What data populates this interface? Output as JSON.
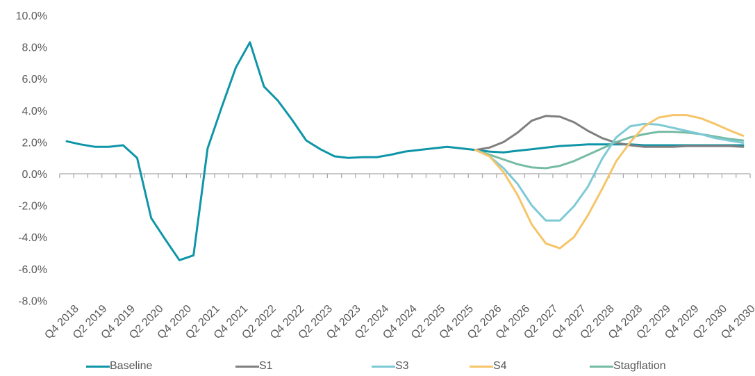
{
  "chart_data": {
    "type": "line",
    "title": "",
    "xlabel": "",
    "ylabel": "",
    "ylim": [
      -8.0,
      10.0
    ],
    "y_ticks": [
      "10.0%",
      "8.0%",
      "6.0%",
      "4.0%",
      "2.0%",
      "0.0%",
      "-2.0%",
      "-4.0%",
      "-6.0%",
      "-8.0%"
    ],
    "y_tick_values": [
      10,
      8,
      6,
      4,
      2,
      0,
      -2,
      -4,
      -6,
      -8
    ],
    "grid": false,
    "legend_position": "bottom",
    "x": [
      "Q4 2018",
      "Q1 2019",
      "Q2 2019",
      "Q3 2019",
      "Q4 2019",
      "Q1 2020",
      "Q2 2020",
      "Q3 2020",
      "Q4 2020",
      "Q1 2021",
      "Q2 2021",
      "Q3 2021",
      "Q4 2021",
      "Q1 2022",
      "Q2 2022",
      "Q3 2022",
      "Q4 2022",
      "Q1 2023",
      "Q2 2023",
      "Q3 2023",
      "Q4 2023",
      "Q1 2024",
      "Q2 2024",
      "Q3 2024",
      "Q4 2024",
      "Q1 2025",
      "Q2 2025",
      "Q3 2025",
      "Q4 2025",
      "Q1 2026",
      "Q2 2026",
      "Q3 2026",
      "Q4 2026",
      "Q1 2027",
      "Q2 2027",
      "Q3 2027",
      "Q4 2027",
      "Q1 2028",
      "Q2 2028",
      "Q3 2028",
      "Q4 2028",
      "Q1 2029",
      "Q2 2029",
      "Q3 2029",
      "Q4 2029",
      "Q1 2030",
      "Q2 2030",
      "Q3 2030",
      "Q4 2030"
    ],
    "x_tick_labels": [
      "Q4 2018",
      "Q2 2019",
      "Q4 2019",
      "Q2 2020",
      "Q4 2020",
      "Q2 2021",
      "Q4 2021",
      "Q2 2022",
      "Q4 2022",
      "Q2 2023",
      "Q4 2023",
      "Q2 2024",
      "Q4 2024",
      "Q2 2025",
      "Q4 2025",
      "Q2 2026",
      "Q4 2026",
      "Q2 2027",
      "Q4 2027",
      "Q2 2028",
      "Q4 2028",
      "Q2 2029",
      "Q4 2029",
      "Q2 2030",
      "Q4 2030"
    ],
    "series": [
      {
        "name": "Baseline",
        "color": "#0E95A8",
        "start_index": 0,
        "values": [
          2.05,
          1.85,
          1.7,
          1.7,
          1.8,
          1.0,
          -2.8,
          -4.15,
          -5.45,
          -5.15,
          1.6,
          4.2,
          6.7,
          8.3,
          5.5,
          4.6,
          3.4,
          2.1,
          1.55,
          1.1,
          1.0,
          1.05,
          1.05,
          1.2,
          1.4,
          1.5,
          1.6,
          1.7,
          1.6,
          1.5,
          1.4,
          1.35,
          1.45,
          1.55,
          1.65,
          1.75,
          1.8,
          1.85,
          1.85,
          1.85,
          1.85,
          1.8,
          1.8,
          1.8,
          1.8,
          1.8,
          1.8,
          1.8,
          1.8
        ]
      },
      {
        "name": "S1",
        "color": "#7F7F80",
        "start_index": 29,
        "values": [
          1.5,
          1.65,
          2.0,
          2.6,
          3.35,
          3.65,
          3.6,
          3.25,
          2.7,
          2.25,
          1.95,
          1.8,
          1.7,
          1.7,
          1.7,
          1.75,
          1.75,
          1.75,
          1.75,
          1.7
        ]
      },
      {
        "name": "S3",
        "color": "#7DCAD6",
        "start_index": 29,
        "values": [
          1.5,
          1.1,
          0.35,
          -0.65,
          -2.0,
          -2.95,
          -2.95,
          -2.05,
          -0.8,
          0.95,
          2.3,
          3.0,
          3.15,
          3.1,
          2.9,
          2.7,
          2.5,
          2.25,
          2.1,
          1.95
        ]
      },
      {
        "name": "S4",
        "color": "#F6C56A",
        "start_index": 29,
        "values": [
          1.5,
          1.1,
          0.1,
          -1.35,
          -3.2,
          -4.4,
          -4.7,
          -4.0,
          -2.6,
          -0.95,
          0.8,
          2.0,
          3.0,
          3.55,
          3.7,
          3.7,
          3.5,
          3.15,
          2.75,
          2.4
        ]
      },
      {
        "name": "Stagflation",
        "color": "#76BBA5",
        "start_index": 29,
        "values": [
          1.5,
          1.2,
          0.9,
          0.6,
          0.4,
          0.35,
          0.5,
          0.8,
          1.2,
          1.6,
          2.0,
          2.3,
          2.5,
          2.65,
          2.65,
          2.6,
          2.5,
          2.35,
          2.2,
          2.1
        ]
      }
    ]
  },
  "legend": {
    "items": [
      {
        "label": "Baseline",
        "color": "#0E95A8"
      },
      {
        "label": "S1",
        "color": "#7F7F80"
      },
      {
        "label": "S3",
        "color": "#7DCAD6"
      },
      {
        "label": "S4",
        "color": "#F6C56A"
      },
      {
        "label": "Stagflation",
        "color": "#76BBA5"
      }
    ]
  },
  "colors": {
    "axis": "#A6A6A6",
    "tick_text": "#595959"
  }
}
